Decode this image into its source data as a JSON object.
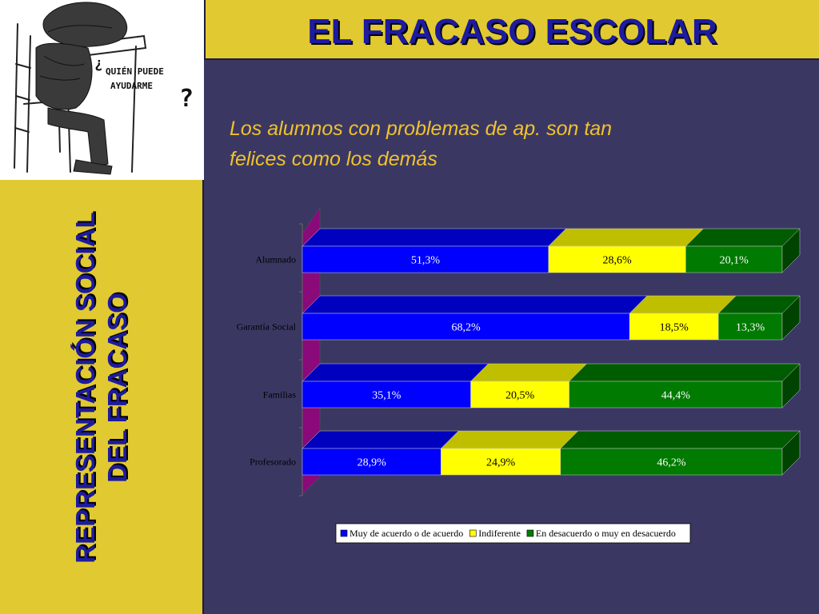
{
  "title": "EL FRACASO ESCOLAR",
  "sidebar": {
    "line1": "REPRESENTACIÓN SOCIAL",
    "line2": "DEL FRACASO"
  },
  "subtitle": {
    "line1": "Los alumnos con problemas de ap. son tan",
    "line2": "felices como los demás"
  },
  "logo": {
    "caption": "¿QUIÉN PUEDE AYUDARME?"
  },
  "colors": {
    "series_blue": "#0000ff",
    "series_yellow": "#ffff00",
    "series_green": "#007a00",
    "background": "#3a3863",
    "accent": "#e1c932"
  },
  "chart_data": {
    "type": "bar",
    "orientation": "horizontal",
    "stacked": true,
    "stack_mode": "percent",
    "categories": [
      "Alumnado",
      "Garantía Social",
      "Familias",
      "Profesorado"
    ],
    "series": [
      {
        "name": "Muy de acuerdo o de acuerdo",
        "color": "#0000ff",
        "values": [
          51.3,
          68.2,
          35.1,
          28.9
        ],
        "labels": [
          "51,3%",
          "68,2%",
          "35,1%",
          "28,9%"
        ]
      },
      {
        "name": "Indiferente",
        "color": "#ffff00",
        "values": [
          28.6,
          18.5,
          20.5,
          24.9
        ],
        "labels": [
          "28,6%",
          "18,5%",
          "20,5%",
          "24,9%"
        ]
      },
      {
        "name": "En desacuerdo o muy en desacuerdo",
        "color": "#007a00",
        "values": [
          20.1,
          13.3,
          44.4,
          46.2
        ],
        "labels": [
          "20,1%",
          "13,3%",
          "44,4%",
          "46,2%"
        ]
      }
    ],
    "xlim": [
      0,
      100
    ],
    "legend_position": "bottom",
    "grid": false,
    "three_d": true
  }
}
